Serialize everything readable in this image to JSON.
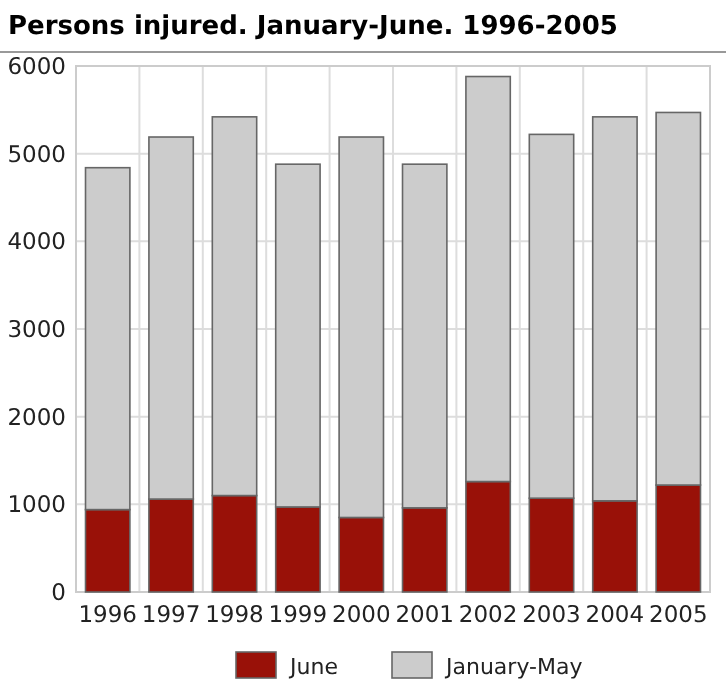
{
  "chart_data": {
    "type": "bar",
    "title": "Persons injured. January-June. 1996-2005",
    "categories": [
      "1996",
      "1997",
      "1998",
      "1999",
      "2000",
      "2001",
      "2002",
      "2003",
      "2004",
      "2005"
    ],
    "series": [
      {
        "name": "June",
        "color": "#991108",
        "values": [
          940,
          1060,
          1100,
          970,
          850,
          960,
          1260,
          1070,
          1040,
          1220
        ]
      },
      {
        "name": "January-May",
        "color": "#cccccc",
        "values": [
          3900,
          4130,
          4320,
          3910,
          4340,
          3920,
          4620,
          4150,
          4380,
          4250
        ]
      }
    ],
    "stacked": true,
    "ylim": [
      0,
      6000
    ],
    "yticks": [
      0,
      1000,
      2000,
      3000,
      4000,
      5000,
      6000
    ],
    "grid": true,
    "legend": "bottom"
  }
}
